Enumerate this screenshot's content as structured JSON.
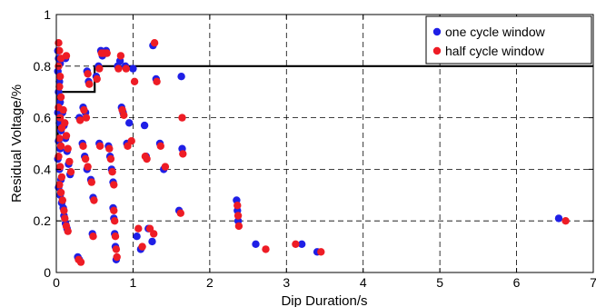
{
  "chart_data": {
    "type": "scatter",
    "xlabel": "Dip Duration/s",
    "ylabel": "Residual Voltage/%",
    "xlim": [
      0,
      7
    ],
    "ylim": [
      0,
      1
    ],
    "x_ticks": [
      "0",
      "1",
      "2",
      "3",
      "4",
      "5",
      "6",
      "7"
    ],
    "y_ticks": [
      "0",
      "0.2",
      "0.4",
      "0.6",
      "0.8",
      "1"
    ],
    "grid": true,
    "legend_position": "top-right",
    "boundary_curve": {
      "x": [
        0.0,
        0.02,
        0.02,
        0.15,
        0.15,
        0.5,
        0.5,
        7.0
      ],
      "y": [
        0.5,
        0.5,
        0.7,
        0.7,
        0.7,
        0.7,
        0.8,
        0.8
      ]
    },
    "series": [
      {
        "name": "one cycle window",
        "color": "#1f1fe6",
        "points": [
          [
            0.02,
            0.86
          ],
          [
            0.03,
            0.83
          ],
          [
            0.05,
            0.81
          ],
          [
            0.02,
            0.78
          ],
          [
            0.04,
            0.74
          ],
          [
            0.03,
            0.7
          ],
          [
            0.05,
            0.66
          ],
          [
            0.02,
            0.62
          ],
          [
            0.04,
            0.58
          ],
          [
            0.06,
            0.55
          ],
          [
            0.03,
            0.51
          ],
          [
            0.05,
            0.48
          ],
          [
            0.02,
            0.44
          ],
          [
            0.04,
            0.4
          ],
          [
            0.06,
            0.36
          ],
          [
            0.03,
            0.33
          ],
          [
            0.05,
            0.3
          ],
          [
            0.07,
            0.27
          ],
          [
            0.09,
            0.25
          ],
          [
            0.1,
            0.22
          ],
          [
            0.12,
            0.19
          ],
          [
            0.14,
            0.17
          ],
          [
            0.08,
            0.62
          ],
          [
            0.1,
            0.57
          ],
          [
            0.12,
            0.52
          ],
          [
            0.14,
            0.47
          ],
          [
            0.16,
            0.42
          ],
          [
            0.18,
            0.38
          ],
          [
            0.12,
            0.83
          ],
          [
            0.28,
            0.06
          ],
          [
            0.3,
            0.05
          ],
          [
            0.35,
            0.64
          ],
          [
            0.38,
            0.62
          ],
          [
            0.3,
            0.6
          ],
          [
            0.34,
            0.5
          ],
          [
            0.37,
            0.45
          ],
          [
            0.4,
            0.4
          ],
          [
            0.4,
            0.78
          ],
          [
            0.42,
            0.74
          ],
          [
            0.45,
            0.36
          ],
          [
            0.47,
            0.15
          ],
          [
            0.48,
            0.29
          ],
          [
            0.52,
            0.76
          ],
          [
            0.55,
            0.8
          ],
          [
            0.56,
            0.5
          ],
          [
            0.58,
            0.86
          ],
          [
            0.6,
            0.84
          ],
          [
            0.65,
            0.86
          ],
          [
            0.68,
            0.49
          ],
          [
            0.7,
            0.45
          ],
          [
            0.72,
            0.4
          ],
          [
            0.74,
            0.35
          ],
          [
            0.74,
            0.25
          ],
          [
            0.75,
            0.21
          ],
          [
            0.76,
            0.15
          ],
          [
            0.77,
            0.1
          ],
          [
            0.78,
            0.05
          ],
          [
            0.8,
            0.8
          ],
          [
            0.83,
            0.82
          ],
          [
            0.85,
            0.64
          ],
          [
            0.87,
            0.62
          ],
          [
            0.9,
            0.8
          ],
          [
            0.92,
            0.5
          ],
          [
            0.95,
            0.58
          ],
          [
            1.0,
            0.79
          ],
          [
            1.05,
            0.14
          ],
          [
            1.1,
            0.09
          ],
          [
            1.15,
            0.57
          ],
          [
            1.17,
            0.45
          ],
          [
            1.2,
            0.17
          ],
          [
            1.25,
            0.12
          ],
          [
            1.26,
            0.88
          ],
          [
            1.3,
            0.75
          ],
          [
            1.35,
            0.5
          ],
          [
            1.4,
            0.4
          ],
          [
            1.6,
            0.24
          ],
          [
            1.63,
            0.76
          ],
          [
            1.64,
            0.48
          ],
          [
            2.35,
            0.28
          ],
          [
            2.36,
            0.24
          ],
          [
            2.37,
            0.2
          ],
          [
            2.6,
            0.11
          ],
          [
            3.2,
            0.11
          ],
          [
            3.4,
            0.08
          ],
          [
            6.55,
            0.21
          ]
        ]
      },
      {
        "name": "half cycle window",
        "color": "#ee1c25",
        "points": [
          [
            0.03,
            0.89
          ],
          [
            0.04,
            0.86
          ],
          [
            0.06,
            0.83
          ],
          [
            0.03,
            0.8
          ],
          [
            0.05,
            0.76
          ],
          [
            0.04,
            0.72
          ],
          [
            0.06,
            0.68
          ],
          [
            0.03,
            0.64
          ],
          [
            0.05,
            0.6
          ],
          [
            0.07,
            0.56
          ],
          [
            0.04,
            0.52
          ],
          [
            0.06,
            0.49
          ],
          [
            0.03,
            0.45
          ],
          [
            0.05,
            0.41
          ],
          [
            0.07,
            0.37
          ],
          [
            0.04,
            0.34
          ],
          [
            0.06,
            0.31
          ],
          [
            0.08,
            0.28
          ],
          [
            0.1,
            0.24
          ],
          [
            0.11,
            0.21
          ],
          [
            0.13,
            0.18
          ],
          [
            0.15,
            0.16
          ],
          [
            0.09,
            0.63
          ],
          [
            0.11,
            0.58
          ],
          [
            0.13,
            0.53
          ],
          [
            0.15,
            0.48
          ],
          [
            0.17,
            0.43
          ],
          [
            0.19,
            0.39
          ],
          [
            0.13,
            0.84
          ],
          [
            0.29,
            0.05
          ],
          [
            0.32,
            0.04
          ],
          [
            0.36,
            0.63
          ],
          [
            0.39,
            0.6
          ],
          [
            0.31,
            0.59
          ],
          [
            0.35,
            0.49
          ],
          [
            0.38,
            0.44
          ],
          [
            0.41,
            0.41
          ],
          [
            0.41,
            0.77
          ],
          [
            0.43,
            0.73
          ],
          [
            0.46,
            0.35
          ],
          [
            0.48,
            0.14
          ],
          [
            0.49,
            0.28
          ],
          [
            0.53,
            0.75
          ],
          [
            0.56,
            0.79
          ],
          [
            0.57,
            0.49
          ],
          [
            0.59,
            0.85
          ],
          [
            0.62,
            0.85
          ],
          [
            0.66,
            0.85
          ],
          [
            0.69,
            0.48
          ],
          [
            0.71,
            0.44
          ],
          [
            0.73,
            0.39
          ],
          [
            0.75,
            0.34
          ],
          [
            0.75,
            0.24
          ],
          [
            0.76,
            0.2
          ],
          [
            0.77,
            0.14
          ],
          [
            0.78,
            0.09
          ],
          [
            0.79,
            0.06
          ],
          [
            0.81,
            0.79
          ],
          [
            0.84,
            0.84
          ],
          [
            0.86,
            0.63
          ],
          [
            0.88,
            0.61
          ],
          [
            0.91,
            0.79
          ],
          [
            0.93,
            0.49
          ],
          [
            0.98,
            0.51
          ],
          [
            1.02,
            0.74
          ],
          [
            1.07,
            0.17
          ],
          [
            1.12,
            0.1
          ],
          [
            1.16,
            0.45
          ],
          [
            1.18,
            0.44
          ],
          [
            1.22,
            0.17
          ],
          [
            1.27,
            0.15
          ],
          [
            1.28,
            0.89
          ],
          [
            1.31,
            0.74
          ],
          [
            1.36,
            0.49
          ],
          [
            1.42,
            0.41
          ],
          [
            1.62,
            0.23
          ],
          [
            1.64,
            0.6
          ],
          [
            1.65,
            0.46
          ],
          [
            2.36,
            0.26
          ],
          [
            2.37,
            0.22
          ],
          [
            2.38,
            0.18
          ],
          [
            2.73,
            0.09
          ],
          [
            3.12,
            0.11
          ],
          [
            3.45,
            0.08
          ],
          [
            6.64,
            0.2
          ]
        ]
      }
    ]
  }
}
